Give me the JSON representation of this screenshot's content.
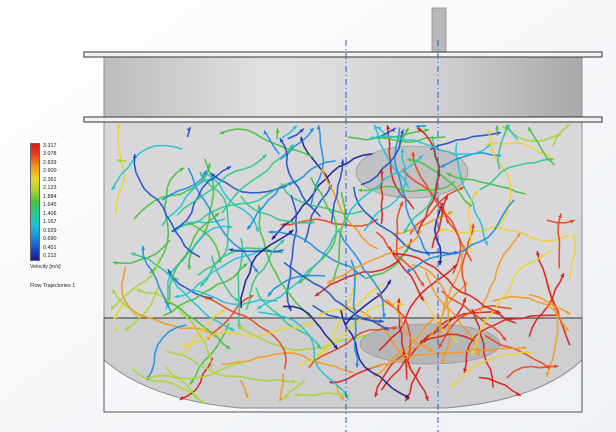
{
  "legend": {
    "ticks": [
      "3.317",
      "3.078",
      "2.839",
      "2.600",
      "2.361",
      "2.123",
      "1.884",
      "1.645",
      "1.406",
      "1.167",
      "0.929",
      "0.690",
      "0.451",
      "0.212"
    ],
    "colors": [
      "#1a1a8c",
      "#1f4fc8",
      "#1b8fe0",
      "#22c2d6",
      "#2cc98a",
      "#45c23a",
      "#a8d62e",
      "#ecd32a",
      "#f29a1f",
      "#e8451b",
      "#d81d16"
    ],
    "unit_label": "Velocity [m/s]",
    "caption": "Flow Trajectories 1"
  },
  "colors": {
    "tank_wall": "#9c9c9c",
    "tank_rim": "#3a3a3a",
    "liquid_fill": "#d4d4d6",
    "shaft": "#b9b9bb",
    "axis_line": "#1f5fd6"
  }
}
